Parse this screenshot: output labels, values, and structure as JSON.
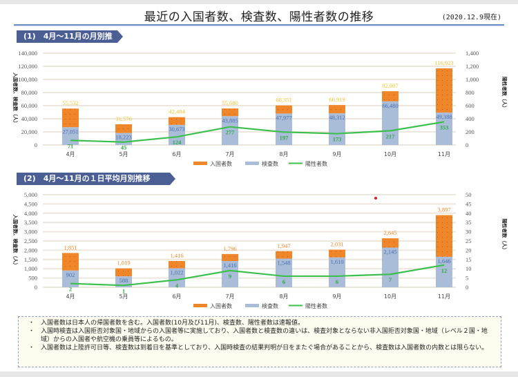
{
  "page": {
    "title": "最近の入国者数、検査数、陽性者数の推移",
    "as_of": "(2020.12.9現在)"
  },
  "sections": [
    {
      "label": "(1)　4月～11月の月別推移"
    },
    {
      "label": "(2)　4月～11月の１日平均月別推移"
    }
  ],
  "colors": {
    "arrivals": "#f0862a",
    "tests": "#a9bcd8",
    "positives": "#3cbf4c",
    "arrivals_label": "#f2c230",
    "arrivals_label_2": "#f0862a",
    "tests_label": "#4a6fb0",
    "positives_label": "#2faa44",
    "section_bg": "#4b5f95",
    "grid": "#ece6dc"
  },
  "chart_data": [
    {
      "type": "bar",
      "stacked": true,
      "title": "(1) 4月～11月の月別推移",
      "categories": [
        "4月",
        "5月",
        "6月",
        "7月",
        "8月",
        "9月",
        "10月",
        "11月"
      ],
      "series": [
        {
          "name": "入国者数",
          "kind": "bar",
          "axis": "left",
          "values": [
            55532,
            31576,
            42484,
            55680,
            60351,
            60919,
            82007,
            116923
          ]
        },
        {
          "name": "検査数",
          "kind": "bar",
          "axis": "left",
          "values": [
            27051,
            18223,
            30673,
            43885,
            47977,
            48312,
            66480,
            49388
          ]
        },
        {
          "name": "陽性者数",
          "kind": "line",
          "axis": "right",
          "values": [
            71,
            45,
            124,
            277,
            197,
            173,
            217,
            353
          ]
        }
      ],
      "ylabel": "入国者数、検査数（人）",
      "y2label": "陽性者数（人）",
      "ylim": [
        0,
        140000
      ],
      "y2lim": [
        0,
        1400
      ],
      "yticks": [
        "0",
        "20,000",
        "40,000",
        "60,000",
        "80,000",
        "100,000",
        "120,000",
        "140,000"
      ],
      "y2ticks": [
        "0",
        "200",
        "400",
        "600",
        "800",
        "1,000",
        "1,200",
        "1,400"
      ],
      "grid": true,
      "legend": "bottom",
      "legend_entries": [
        "入国者数",
        "検査数",
        "陽性者数"
      ]
    },
    {
      "type": "bar",
      "stacked": true,
      "title": "(2) 4月～11月の１日平均月別推移",
      "categories": [
        "4月",
        "5月",
        "6月",
        "7月",
        "8月",
        "9月",
        "10月",
        "11月"
      ],
      "series": [
        {
          "name": "入国者数",
          "kind": "bar",
          "axis": "left",
          "values": [
            1851,
            1019,
            1416,
            1796,
            1947,
            2031,
            2645,
            3897
          ]
        },
        {
          "name": "検査数",
          "kind": "bar",
          "axis": "left",
          "values": [
            902,
            588,
            1022,
            1416,
            1548,
            1610,
            2145,
            1646
          ]
        },
        {
          "name": "陽性者数",
          "kind": "line",
          "axis": "right",
          "values": [
            2,
            1,
            4,
            9,
            6,
            6,
            7,
            12
          ]
        }
      ],
      "ylabel": "入国者数、検査数（人）",
      "y2label": "陽性者数（人）",
      "ylim": [
        0,
        5000
      ],
      "y2lim": [
        0,
        50
      ],
      "yticks": [
        "0",
        "500",
        "1,000",
        "1,500",
        "2,000",
        "2,500",
        "3,000",
        "3,500",
        "4,000",
        "4,500",
        "5,000"
      ],
      "y2ticks": [
        "0",
        "5",
        "10",
        "15",
        "20",
        "25",
        "30",
        "35",
        "40",
        "45",
        "50"
      ],
      "grid": true,
      "legend": "bottom",
      "legend_entries": [
        "入国者数",
        "検査数",
        "陽性者数"
      ]
    }
  ],
  "notes": [
    "入国者数は日本人の帰国者数を含む。入国者数(10月及び11月)、検査数、陽性者数は速報値。",
    "入国時検査は入国拒否対象国・地域からの入国者等に実施しており、入国者数と検査数の違いは、検査対象とならない非入国拒否対象国・地域（レベル２国・地域）からの入国者や航空機の乗員等によるもの。",
    "入国者数は上陸許可日等、検査数は到着日を基準としており、入国時検査の結果判明が日をまたぐ場合があることから、検査数は入国者数の内数とは限らない。"
  ]
}
